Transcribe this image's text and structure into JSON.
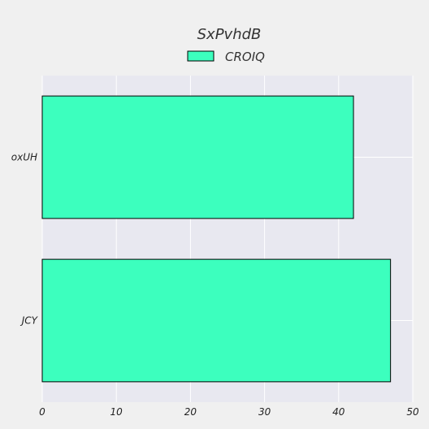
{
  "chart_data": {
    "type": "bar",
    "orientation": "horizontal",
    "title": "SxPvhdB",
    "categories": [
      "oxUH",
      "JCY"
    ],
    "series": [
      {
        "name": "CROIQ",
        "values": [
          42,
          47
        ],
        "color": "#3cffbe"
      }
    ],
    "xlim": [
      0,
      50
    ],
    "xticks": [
      "0",
      "10",
      "20",
      "30",
      "40",
      "50"
    ],
    "grid": true,
    "legend_position": "top-center",
    "background_color": "#f0f0f0",
    "plot_background_color": "#e8e8f0",
    "bar_edge_color": "#000000"
  }
}
